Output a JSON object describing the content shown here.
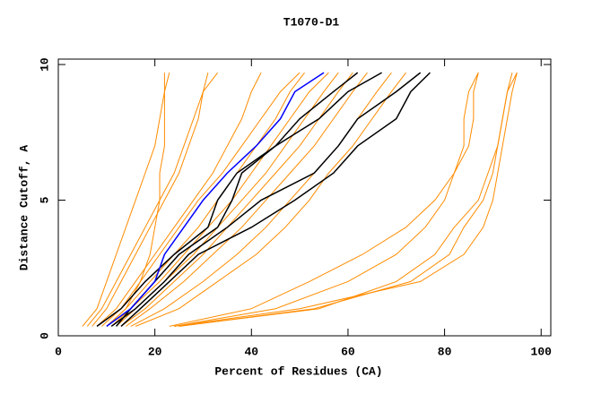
{
  "chart_data": {
    "type": "line",
    "title": "T1070-D1",
    "x_label": "Percent of Residues (CA)",
    "y_label": "Distance Cutoff, A",
    "xlim": [
      0,
      102
    ],
    "ylim": [
      0,
      10.2
    ],
    "xticks": [
      0,
      20,
      40,
      60,
      80,
      100
    ],
    "yticks": [
      0,
      5,
      10
    ],
    "series": [
      {
        "color": "#ff8c00",
        "x": [
          5,
          8,
          10,
          12,
          14,
          16,
          18,
          20,
          21,
          22,
          23
        ],
        "y": [
          0.35,
          1,
          2,
          3,
          4,
          5,
          6,
          7,
          8,
          9,
          9.7
        ]
      },
      {
        "color": "#ff8c00",
        "x": [
          7,
          10,
          13,
          16,
          19,
          22,
          25,
          27,
          29,
          30,
          31
        ],
        "y": [
          0.35,
          1,
          2,
          3,
          4,
          5,
          6,
          7,
          8,
          9,
          9.7
        ]
      },
      {
        "color": "#ff8c00",
        "x": [
          8,
          12,
          16,
          20,
          24,
          28,
          32,
          35,
          38,
          40,
          42
        ],
        "y": [
          0.35,
          1,
          2,
          3,
          4,
          5,
          6,
          7,
          8,
          9,
          9.7
        ]
      },
      {
        "color": "#ff8c00",
        "x": [
          10,
          14,
          19,
          24,
          29,
          33,
          37,
          41,
          45,
          48,
          51
        ],
        "y": [
          0.35,
          1,
          2,
          3,
          4,
          5,
          6,
          7,
          8,
          9,
          9.7
        ]
      },
      {
        "color": "#ff8c00",
        "x": [
          12,
          16,
          22,
          28,
          33,
          38,
          43,
          47,
          51,
          55,
          58
        ],
        "y": [
          0.35,
          1,
          2,
          3,
          4,
          5,
          6,
          7,
          8,
          9,
          9.7
        ]
      },
      {
        "color": "#ff8c00",
        "x": [
          14,
          19,
          26,
          32,
          38,
          43,
          48,
          53,
          57,
          61,
          64
        ],
        "y": [
          0.35,
          1,
          2,
          3,
          4,
          5,
          6,
          7,
          8,
          9,
          9.7
        ]
      },
      {
        "color": "#ff8c00",
        "x": [
          15,
          22,
          30,
          37,
          43,
          48,
          53,
          58,
          62,
          66,
          69
        ],
        "y": [
          0.35,
          1,
          2,
          3,
          4,
          5,
          6,
          7,
          8,
          9,
          9.7
        ]
      },
      {
        "color": "#ff8c00",
        "x": [
          16,
          25,
          33,
          41,
          47,
          52,
          56,
          61,
          65,
          69,
          72
        ],
        "y": [
          0.35,
          1,
          2,
          3,
          4,
          5,
          6,
          7,
          8,
          9,
          9.7
        ]
      },
      {
        "color": "#ff8c00",
        "x": [
          6,
          9,
          12,
          15,
          18,
          21,
          24,
          26,
          28,
          30,
          33
        ],
        "y": [
          0.35,
          1,
          2,
          3,
          4,
          5,
          6,
          7,
          8,
          9,
          9.7
        ]
      },
      {
        "color": "#ff8c00",
        "x": [
          9,
          13,
          17,
          21,
          25,
          29,
          34,
          38,
          42,
          46,
          50
        ],
        "y": [
          0.35,
          1,
          2,
          3,
          4,
          5,
          6,
          7,
          8,
          9,
          9.7
        ]
      },
      {
        "color": "#ff8c00",
        "x": [
          11,
          15,
          21,
          26,
          31,
          36,
          40,
          44,
          48,
          52,
          56
        ],
        "y": [
          0.35,
          1,
          2,
          3,
          4,
          5,
          6,
          7,
          8,
          9,
          9.7
        ]
      },
      {
        "color": "#ff8c00",
        "x": [
          13,
          18,
          24,
          30,
          35,
          40,
          45,
          50,
          54,
          58,
          61
        ],
        "y": [
          0.35,
          1,
          2,
          3,
          4,
          5,
          6,
          7,
          8,
          9,
          9.7
        ]
      },
      {
        "color": "#ff8c00",
        "x": [
          10,
          14,
          17,
          19,
          20,
          21,
          21,
          22,
          22,
          22,
          22
        ],
        "y": [
          0.35,
          1,
          2,
          3,
          4,
          5,
          6,
          7,
          8,
          9,
          9.7
        ]
      },
      {
        "color": "#ff8c00",
        "x": [
          24,
          45,
          60,
          70,
          76,
          80,
          82,
          84,
          84,
          85,
          87
        ],
        "y": [
          0.35,
          1,
          2,
          3,
          4,
          5,
          6,
          7,
          8,
          9,
          9.7
        ]
      },
      {
        "color": "#ff8c00",
        "x": [
          23,
          40,
          52,
          63,
          72,
          78,
          82,
          85,
          86,
          86,
          87
        ],
        "y": [
          0.35,
          1,
          2,
          3,
          4,
          5,
          6,
          7,
          8,
          9,
          9.7
        ]
      },
      {
        "color": "#ff8c00",
        "x": [
          25,
          54,
          70,
          78,
          82,
          87,
          89,
          91,
          92,
          93,
          94
        ],
        "y": [
          0.35,
          1,
          2,
          3,
          4,
          5,
          6,
          7,
          8,
          9,
          9.7
        ]
      },
      {
        "color": "#ff8c00",
        "x": [
          25,
          53,
          73,
          81,
          84,
          88,
          90,
          91,
          92,
          93,
          95
        ],
        "y": [
          0.35,
          1,
          2,
          3,
          4,
          5,
          6,
          7,
          8,
          9,
          9.7
        ]
      },
      {
        "color": "#ff8c00",
        "x": [
          24,
          50,
          75,
          84,
          88,
          90,
          91,
          92,
          93,
          94,
          95
        ],
        "y": [
          0.35,
          1,
          2,
          3,
          4,
          5,
          6,
          7,
          8,
          9,
          9.7
        ]
      },
      {
        "color": "#000000",
        "x": [
          8,
          13,
          18,
          24,
          31,
          33,
          37,
          45,
          50,
          57,
          62
        ],
        "y": [
          0.35,
          1,
          2,
          3,
          4,
          5,
          6,
          7,
          8,
          9,
          9.7
        ]
      },
      {
        "color": "#000000",
        "x": [
          12,
          15,
          20,
          25,
          33,
          36,
          38,
          45,
          54,
          60,
          67
        ],
        "y": [
          0.35,
          1,
          2,
          3,
          4,
          5,
          6,
          7,
          8,
          9,
          9.7
        ]
      },
      {
        "color": "#000000",
        "x": [
          11,
          16,
          22,
          27,
          35,
          42,
          53,
          58,
          62,
          70,
          75
        ],
        "y": [
          0.35,
          1,
          2,
          3,
          4,
          5,
          6,
          7,
          8,
          9,
          9.7
        ]
      },
      {
        "color": "#000000",
        "x": [
          13,
          17,
          23,
          29,
          40,
          49,
          57,
          62,
          70,
          73,
          77
        ],
        "y": [
          0.35,
          1,
          2,
          3,
          4,
          5,
          6,
          7,
          8,
          9,
          9.7
        ]
      },
      {
        "color": "#0000ff",
        "x": [
          10,
          15,
          20,
          22,
          26,
          30,
          35,
          41,
          46,
          49,
          55
        ],
        "y": [
          0.35,
          1,
          2,
          3,
          4,
          5,
          6,
          7,
          8,
          9,
          9.7
        ]
      }
    ]
  }
}
